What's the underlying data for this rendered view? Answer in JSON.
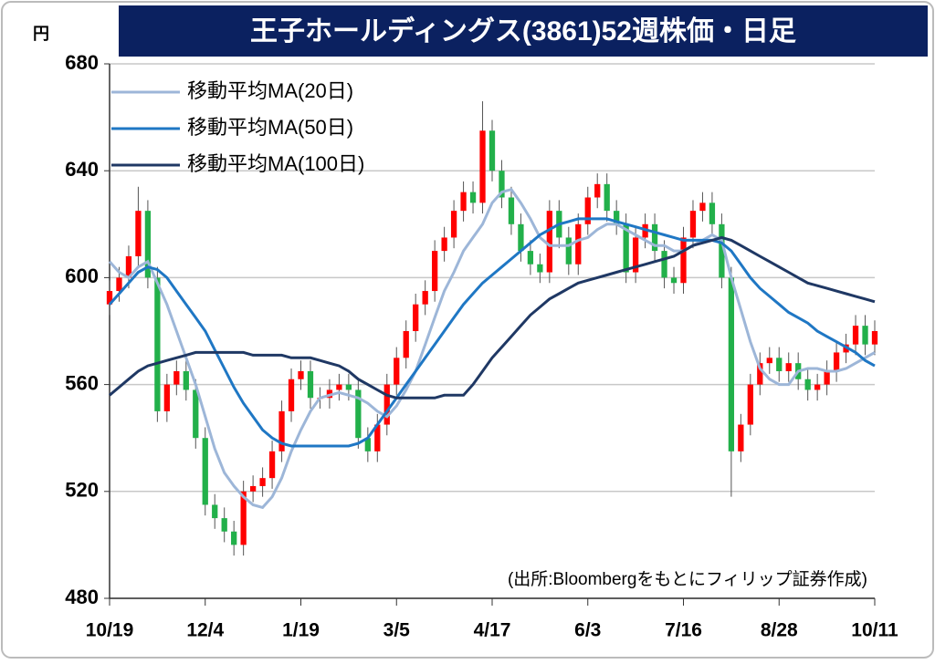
{
  "chart_data": {
    "type": "candlestick",
    "title": "王子ホールディングス(3861)52週株価・日足",
    "y_unit": "円",
    "source": "(出所:Bloombergをもとにフィリップ証券作成)",
    "categories": [
      "10/19",
      null,
      null,
      null,
      null,
      null,
      null,
      null,
      null,
      null,
      "12/4",
      null,
      null,
      null,
      null,
      null,
      null,
      null,
      null,
      null,
      "1/19",
      null,
      null,
      null,
      null,
      null,
      null,
      null,
      null,
      null,
      "3/5",
      null,
      null,
      null,
      null,
      null,
      null,
      null,
      null,
      null,
      "4/17",
      null,
      null,
      null,
      null,
      null,
      null,
      null,
      null,
      null,
      "6/3",
      null,
      null,
      null,
      null,
      null,
      null,
      null,
      null,
      null,
      "7/16",
      null,
      null,
      null,
      null,
      null,
      null,
      null,
      null,
      null,
      "8/28",
      null,
      null,
      null,
      null,
      null,
      null,
      null,
      null,
      null,
      "10/11"
    ],
    "open": [
      590,
      595,
      600,
      608,
      625,
      600,
      550,
      560,
      565,
      558,
      540,
      515,
      510,
      505,
      500,
      520,
      522,
      525,
      535,
      550,
      562,
      565,
      555,
      555,
      558,
      560,
      558,
      540,
      535,
      545,
      560,
      570,
      580,
      590,
      595,
      610,
      615,
      625,
      632,
      628,
      655,
      640,
      630,
      620,
      610,
      605,
      602,
      625,
      615,
      605,
      620,
      630,
      635,
      625,
      620,
      602,
      615,
      620,
      610,
      600,
      598,
      615,
      625,
      628,
      620,
      600,
      535,
      545,
      560,
      568,
      570,
      565,
      568,
      562,
      558,
      560,
      565,
      572,
      575,
      582,
      575
    ],
    "high": [
      599,
      604,
      612,
      634,
      629,
      604,
      564,
      569,
      569,
      562,
      544,
      519,
      514,
      509,
      524,
      526,
      529,
      539,
      554,
      566,
      569,
      569,
      559,
      562,
      564,
      564,
      562,
      544,
      549,
      564,
      574,
      584,
      594,
      599,
      614,
      619,
      629,
      636,
      636,
      666,
      659,
      644,
      634,
      624,
      614,
      609,
      629,
      629,
      619,
      624,
      634,
      639,
      639,
      629,
      624,
      619,
      624,
      624,
      614,
      604,
      619,
      629,
      632,
      632,
      624,
      604,
      549,
      564,
      572,
      574,
      574,
      572,
      572,
      566,
      564,
      569,
      576,
      579,
      586,
      586,
      584
    ],
    "low": [
      586,
      591,
      596,
      604,
      596,
      546,
      546,
      556,
      554,
      536,
      511,
      506,
      501,
      496,
      496,
      516,
      518,
      521,
      531,
      546,
      558,
      551,
      551,
      551,
      554,
      554,
      536,
      531,
      531,
      541,
      556,
      566,
      576,
      586,
      591,
      606,
      611,
      621,
      624,
      624,
      636,
      626,
      616,
      606,
      601,
      598,
      598,
      611,
      601,
      601,
      616,
      626,
      621,
      616,
      598,
      598,
      611,
      606,
      596,
      594,
      594,
      611,
      621,
      616,
      596,
      518,
      531,
      541,
      556,
      564,
      561,
      561,
      558,
      554,
      554,
      556,
      561,
      568,
      571,
      571,
      571
    ],
    "close": [
      595,
      600,
      608,
      625,
      600,
      550,
      560,
      565,
      558,
      540,
      515,
      510,
      505,
      500,
      520,
      522,
      525,
      535,
      550,
      562,
      565,
      555,
      555,
      558,
      560,
      558,
      540,
      535,
      545,
      560,
      570,
      580,
      590,
      595,
      610,
      615,
      625,
      632,
      628,
      655,
      640,
      630,
      620,
      610,
      605,
      602,
      625,
      615,
      605,
      620,
      630,
      635,
      625,
      620,
      602,
      615,
      620,
      610,
      600,
      598,
      615,
      625,
      628,
      620,
      600,
      535,
      545,
      560,
      568,
      570,
      565,
      568,
      562,
      558,
      560,
      565,
      572,
      575,
      582,
      575,
      580
    ],
    "up_color": "#ff0000",
    "down_color": "#22b04a",
    "series": [
      {
        "name": "移動平均MA(20日)",
        "color": "#9db6d8",
        "values": [
          606,
          602,
          600,
          604,
          606,
          598,
          590,
          580,
          570,
          560,
          548,
          536,
          527,
          522,
          518,
          515,
          514,
          518,
          525,
          535,
          543,
          550,
          555,
          556,
          557,
          556,
          555,
          553,
          550,
          548,
          552,
          558,
          565,
          575,
          585,
          595,
          602,
          610,
          615,
          620,
          628,
          632,
          633,
          628,
          622,
          615,
          612,
          612,
          612,
          614,
          615,
          618,
          620,
          620,
          618,
          616,
          614,
          612,
          612,
          610,
          610,
          612,
          614,
          616,
          614,
          600,
          588,
          576,
          566,
          562,
          560,
          560,
          565,
          566,
          566,
          565,
          565,
          566,
          568,
          570,
          572
        ]
      },
      {
        "name": "移動平均MA(50日)",
        "color": "#1f77c4",
        "values": [
          590,
          594,
          598,
          602,
          604,
          603,
          600,
          595,
          590,
          585,
          580,
          573,
          566,
          559,
          553,
          548,
          543,
          540,
          538,
          537,
          537,
          537,
          537,
          537,
          537,
          537,
          538,
          540,
          545,
          550,
          555,
          560,
          565,
          570,
          575,
          580,
          585,
          590,
          594,
          598,
          601,
          604,
          607,
          610,
          613,
          616,
          618,
          620,
          621,
          622,
          622,
          622,
          622,
          621,
          620,
          619,
          618,
          617,
          616,
          615,
          614,
          614,
          614,
          614,
          613,
          610,
          605,
          600,
          596,
          593,
          590,
          587,
          585,
          583,
          580,
          578,
          576,
          574,
          572,
          569,
          567
        ]
      },
      {
        "name": "移動平均MA(100日)",
        "color": "#1f3864",
        "values": [
          556,
          559,
          562,
          565,
          567,
          568,
          569,
          570,
          571,
          572,
          572,
          572,
          572,
          572,
          572,
          571,
          571,
          571,
          571,
          570,
          570,
          570,
          569,
          568,
          567,
          565,
          562,
          560,
          558,
          556,
          555,
          555,
          555,
          555,
          555,
          556,
          556,
          556,
          560,
          565,
          570,
          574,
          578,
          582,
          586,
          589,
          592,
          594,
          596,
          598,
          599,
          600,
          601,
          602,
          603,
          604,
          605,
          606,
          607,
          608,
          610,
          612,
          613,
          614,
          615,
          614,
          612,
          610,
          608,
          606,
          604,
          602,
          600,
          598,
          597,
          596,
          595,
          594,
          593,
          592,
          591
        ]
      }
    ],
    "ylim": [
      480,
      680
    ],
    "yticks": [
      480,
      520,
      560,
      600,
      640,
      680
    ],
    "grid": true
  }
}
